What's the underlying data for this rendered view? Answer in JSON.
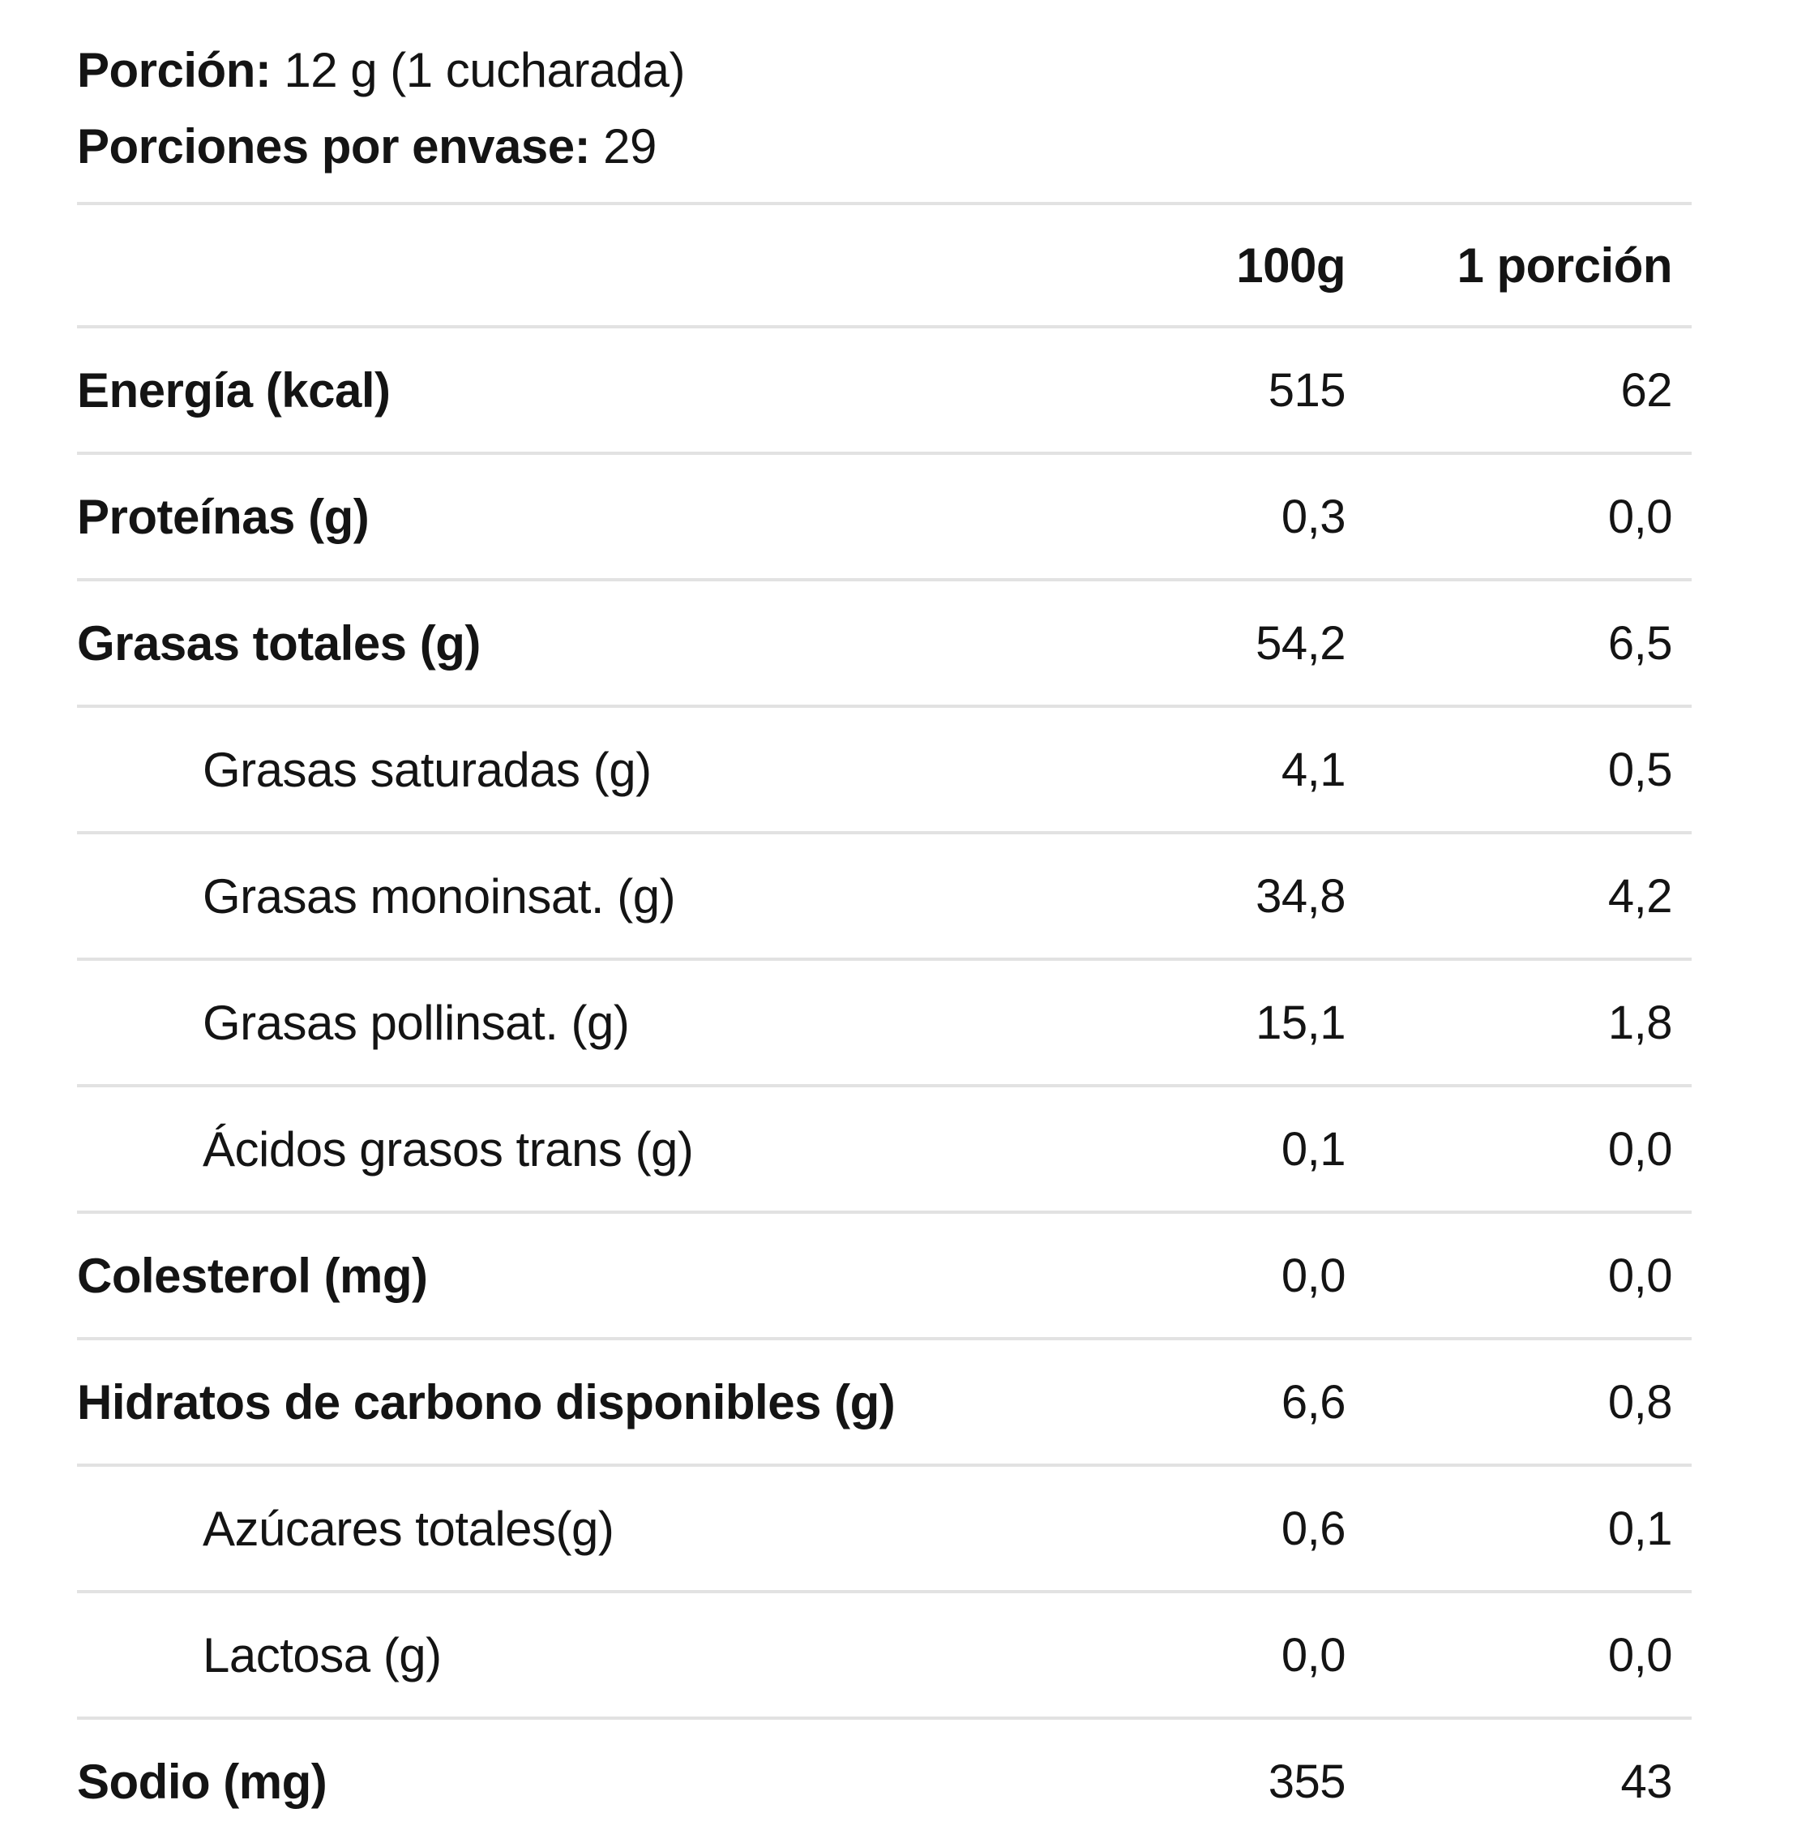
{
  "serving": {
    "portion_label": "Porción:",
    "portion_value": "12 g (1 cucharada)",
    "per_container_label": "Porciones por envase:",
    "per_container_value": "29"
  },
  "table": {
    "columns": [
      "100g",
      "1 porción"
    ],
    "rows": [
      {
        "label": "Energía (kcal)",
        "per_100g": "515",
        "per_portion": "62"
      },
      {
        "label": "Proteínas (g)",
        "per_100g": "0,3",
        "per_portion": "0,0"
      },
      {
        "label": "Grasas totales (g)",
        "per_100g": "54,2",
        "per_portion": "6,5"
      },
      {
        "label": "Grasas saturadas (g)",
        "per_100g": "4,1",
        "per_portion": "0,5"
      },
      {
        "label": "Grasas monoinsat. (g)",
        "per_100g": "34,8",
        "per_portion": "4,2"
      },
      {
        "label": "Grasas pollinsat. (g)",
        "per_100g": "15,1",
        "per_portion": "1,8"
      },
      {
        "label": "Ácidos grasos trans (g)",
        "per_100g": "0,1",
        "per_portion": "0,0"
      },
      {
        "label": "Colesterol (mg)",
        "per_100g": "0,0",
        "per_portion": "0,0"
      },
      {
        "label": "Hidratos de carbono disponibles (g)",
        "per_100g": "6,6",
        "per_portion": "0,8"
      },
      {
        "label": "Azúcares totales(g)",
        "per_100g": "0,6",
        "per_portion": "0,1"
      },
      {
        "label": "Lactosa (g)",
        "per_100g": "0,0",
        "per_portion": "0,0"
      },
      {
        "label": "Sodio (mg)",
        "per_100g": "355",
        "per_portion": "43"
      }
    ]
  }
}
